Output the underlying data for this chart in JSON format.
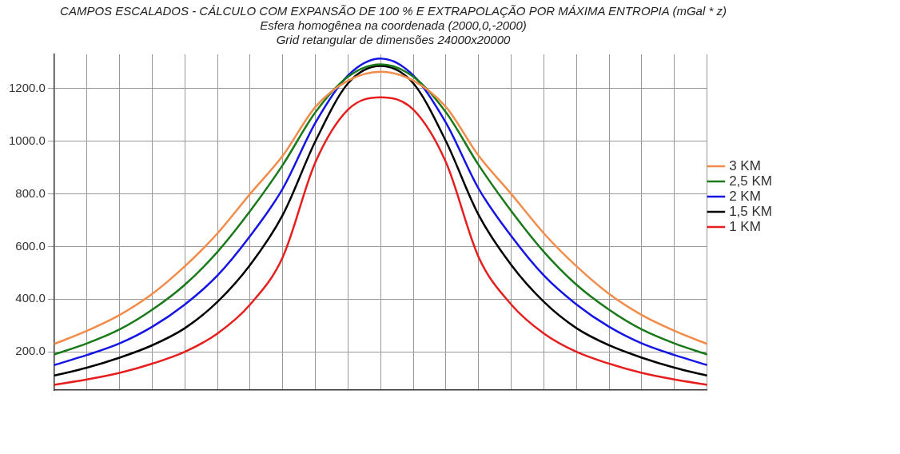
{
  "chart_data": {
    "type": "line",
    "title": "CAMPOS ESCALADOS - CÁLCULO COM EXPANSÃO DE 100 % E EXTRAPOLAÇÃO POR MÁXIMA ENTROPIA (mGal * z)",
    "subtitle": "Esfera homogênea na coordenada (2000,0,-2000)\nGrid retangular de dimensões 24000x20000",
    "categories": [
      null,
      null,
      null,
      null,
      null,
      null,
      null,
      null,
      null,
      null,
      null,
      null,
      null,
      null,
      null,
      null,
      null,
      null,
      null,
      null,
      null
    ],
    "series": [
      {
        "name": "3 KM",
        "color": "#f28c4a",
        "values": [
          230,
          280,
          340,
          420,
          525,
          650,
          800,
          945,
          1130,
          1230,
          1264,
          1230,
          1130,
          945,
          800,
          650,
          525,
          420,
          340,
          280,
          230
        ]
      },
      {
        "name": "2,5 KM",
        "color": "#1a7a1a",
        "values": [
          190,
          232,
          285,
          360,
          455,
          580,
          735,
          910,
          1110,
          1245,
          1292,
          1245,
          1110,
          910,
          735,
          580,
          455,
          360,
          285,
          232,
          190
        ]
      },
      {
        "name": "2 KM",
        "color": "#1414e6",
        "values": [
          150,
          188,
          232,
          295,
          380,
          490,
          640,
          820,
          1070,
          1250,
          1314,
          1250,
          1070,
          820,
          640,
          490,
          380,
          295,
          232,
          188,
          150
        ]
      },
      {
        "name": "1,5 KM",
        "color": "#000000",
        "values": [
          110,
          140,
          178,
          225,
          290,
          390,
          530,
          720,
          1000,
          1220,
          1286,
          1220,
          1000,
          720,
          530,
          390,
          290,
          225,
          178,
          140,
          110
        ]
      },
      {
        "name": "1 KM",
        "color": "#e61e1e",
        "values": [
          75,
          95,
          120,
          155,
          200,
          270,
          380,
          560,
          920,
          1120,
          1167,
          1120,
          920,
          560,
          380,
          270,
          200,
          155,
          120,
          95,
          75
        ]
      }
    ],
    "ylim": [
      55,
      1330
    ],
    "yticks": [
      {
        "value": 200,
        "label": "200.0"
      },
      {
        "value": 400,
        "label": "400.0"
      },
      {
        "value": 600,
        "label": "600.0"
      },
      {
        "value": 800,
        "label": "800.0"
      },
      {
        "value": 1000,
        "label": "1000.0"
      },
      {
        "value": 1200,
        "label": "1200.0"
      }
    ],
    "grid": true,
    "legend": "right",
    "tick_labels": "y",
    "marker": "none",
    "line_style": "solid"
  }
}
